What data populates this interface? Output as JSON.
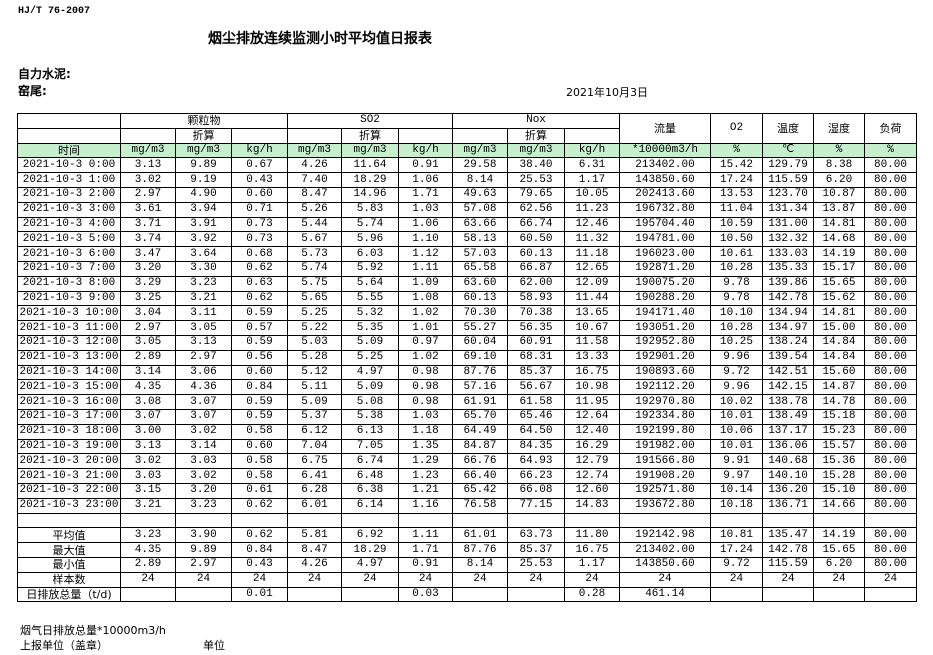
{
  "header": {
    "standard": "HJ/T  76-2007",
    "title": "烟尘排放连续监测小时平均值日报表",
    "company": "自力水泥:",
    "kiln": "窑尾:",
    "date": "2021年10月3日"
  },
  "table": {
    "groups": {
      "particulate": "颗粒物",
      "so2": "SO2",
      "nox": "Nox",
      "flow": "流量",
      "o2": "O2",
      "temp": "温度",
      "humidity": "湿度",
      "load": "负荷",
      "converted": "折算"
    },
    "units": [
      "时间",
      "mg/m3",
      "mg/m3",
      "kg/h",
      "mg/m3",
      "mg/m3",
      "kg/h",
      "mg/m3",
      "mg/m3",
      "kg/h",
      "*10000m3/h",
      "%",
      "℃",
      "%",
      "%"
    ],
    "units_bg": "#c6efce",
    "rows": [
      [
        "2021-10-3 0:00",
        "3.13",
        "9.89",
        "0.67",
        "4.26",
        "11.64",
        "0.91",
        "29.58",
        "38.40",
        "6.31",
        "213402.00",
        "15.42",
        "129.79",
        "8.38",
        "80.00"
      ],
      [
        "2021-10-3 1:00",
        "3.02",
        "9.19",
        "0.43",
        "7.40",
        "18.29",
        "1.06",
        "8.14",
        "25.53",
        "1.17",
        "143850.60",
        "17.24",
        "115.59",
        "6.20",
        "80.00"
      ],
      [
        "2021-10-3 2:00",
        "2.97",
        "4.90",
        "0.60",
        "8.47",
        "14.96",
        "1.71",
        "49.63",
        "79.65",
        "10.05",
        "202413.60",
        "13.53",
        "123.70",
        "10.87",
        "80.00"
      ],
      [
        "2021-10-3 3:00",
        "3.61",
        "3.94",
        "0.71",
        "5.26",
        "5.83",
        "1.03",
        "57.08",
        "62.56",
        "11.23",
        "196732.80",
        "11.04",
        "131.34",
        "13.87",
        "80.00"
      ],
      [
        "2021-10-3 4:00",
        "3.71",
        "3.91",
        "0.73",
        "5.44",
        "5.74",
        "1.06",
        "63.66",
        "66.74",
        "12.46",
        "195704.40",
        "10.59",
        "131.00",
        "14.81",
        "80.00"
      ],
      [
        "2021-10-3 5:00",
        "3.74",
        "3.92",
        "0.73",
        "5.67",
        "5.96",
        "1.10",
        "58.13",
        "60.50",
        "11.32",
        "194781.00",
        "10.50",
        "132.32",
        "14.68",
        "80.00"
      ],
      [
        "2021-10-3 6:00",
        "3.47",
        "3.64",
        "0.68",
        "5.73",
        "6.03",
        "1.12",
        "57.03",
        "60.13",
        "11.18",
        "196023.00",
        "10.61",
        "133.03",
        "14.19",
        "80.00"
      ],
      [
        "2021-10-3 7:00",
        "3.20",
        "3.30",
        "0.62",
        "5.74",
        "5.92",
        "1.11",
        "65.58",
        "66.87",
        "12.65",
        "192871.20",
        "10.28",
        "135.33",
        "15.17",
        "80.00"
      ],
      [
        "2021-10-3 8:00",
        "3.29",
        "3.23",
        "0.63",
        "5.75",
        "5.64",
        "1.09",
        "63.60",
        "62.00",
        "12.09",
        "190075.20",
        "9.78",
        "139.86",
        "15.65",
        "80.00"
      ],
      [
        "2021-10-3 9:00",
        "3.25",
        "3.21",
        "0.62",
        "5.65",
        "5.55",
        "1.08",
        "60.13",
        "58.93",
        "11.44",
        "190288.20",
        "9.78",
        "142.78",
        "15.62",
        "80.00"
      ],
      [
        "2021-10-3 10:00",
        "3.04",
        "3.11",
        "0.59",
        "5.25",
        "5.32",
        "1.02",
        "70.30",
        "70.38",
        "13.65",
        "194171.40",
        "10.10",
        "134.94",
        "14.81",
        "80.00"
      ],
      [
        "2021-10-3 11:00",
        "2.97",
        "3.05",
        "0.57",
        "5.22",
        "5.35",
        "1.01",
        "55.27",
        "56.35",
        "10.67",
        "193051.20",
        "10.28",
        "134.97",
        "15.00",
        "80.00"
      ],
      [
        "2021-10-3 12:00",
        "3.05",
        "3.13",
        "0.59",
        "5.03",
        "5.09",
        "0.97",
        "60.04",
        "60.91",
        "11.58",
        "192952.80",
        "10.25",
        "138.24",
        "14.84",
        "80.00"
      ],
      [
        "2021-10-3 13:00",
        "2.89",
        "2.97",
        "0.56",
        "5.28",
        "5.25",
        "1.02",
        "69.10",
        "68.31",
        "13.33",
        "192901.20",
        "9.96",
        "139.54",
        "14.84",
        "80.00"
      ],
      [
        "2021-10-3 14:00",
        "3.14",
        "3.06",
        "0.60",
        "5.12",
        "4.97",
        "0.98",
        "87.76",
        "85.37",
        "16.75",
        "190893.60",
        "9.72",
        "142.51",
        "15.60",
        "80.00"
      ],
      [
        "2021-10-3 15:00",
        "4.35",
        "4.36",
        "0.84",
        "5.11",
        "5.09",
        "0.98",
        "57.16",
        "56.67",
        "10.98",
        "192112.20",
        "9.96",
        "142.15",
        "14.87",
        "80.00"
      ],
      [
        "2021-10-3 16:00",
        "3.08",
        "3.07",
        "0.59",
        "5.09",
        "5.08",
        "0.98",
        "61.91",
        "61.58",
        "11.95",
        "192970.80",
        "10.02",
        "138.78",
        "14.78",
        "80.00"
      ],
      [
        "2021-10-3 17:00",
        "3.07",
        "3.07",
        "0.59",
        "5.37",
        "5.38",
        "1.03",
        "65.70",
        "65.46",
        "12.64",
        "192334.80",
        "10.01",
        "138.49",
        "15.18",
        "80.00"
      ],
      [
        "2021-10-3 18:00",
        "3.00",
        "3.02",
        "0.58",
        "6.12",
        "6.13",
        "1.18",
        "64.49",
        "64.50",
        "12.40",
        "192199.80",
        "10.06",
        "137.17",
        "15.23",
        "80.00"
      ],
      [
        "2021-10-3 19:00",
        "3.13",
        "3.14",
        "0.60",
        "7.04",
        "7.05",
        "1.35",
        "84.87",
        "84.35",
        "16.29",
        "191982.00",
        "10.01",
        "136.06",
        "15.57",
        "80.00"
      ],
      [
        "2021-10-3 20:00",
        "3.02",
        "3.03",
        "0.58",
        "6.75",
        "6.74",
        "1.29",
        "66.76",
        "64.93",
        "12.79",
        "191566.80",
        "9.91",
        "140.68",
        "15.36",
        "80.00"
      ],
      [
        "2021-10-3 21:00",
        "3.03",
        "3.02",
        "0.58",
        "6.41",
        "6.48",
        "1.23",
        "66.40",
        "66.23",
        "12.74",
        "191908.20",
        "9.97",
        "140.10",
        "15.28",
        "80.00"
      ],
      [
        "2021-10-3 22:00",
        "3.15",
        "3.20",
        "0.61",
        "6.28",
        "6.38",
        "1.21",
        "65.42",
        "66.08",
        "12.60",
        "192571.80",
        "10.14",
        "136.20",
        "15.10",
        "80.00"
      ],
      [
        "2021-10-3 23:00",
        "3.21",
        "3.23",
        "0.62",
        "6.01",
        "6.14",
        "1.16",
        "76.58",
        "77.15",
        "14.83",
        "193672.80",
        "10.18",
        "136.71",
        "14.66",
        "80.00"
      ]
    ],
    "summary": [
      [
        "平均值",
        "3.23",
        "3.90",
        "0.62",
        "5.81",
        "6.92",
        "1.11",
        "61.01",
        "63.73",
        "11.80",
        "192142.98",
        "10.81",
        "135.47",
        "14.19",
        "80.00"
      ],
      [
        "最大值",
        "4.35",
        "9.89",
        "0.84",
        "8.47",
        "18.29",
        "1.71",
        "87.76",
        "85.37",
        "16.75",
        "213402.00",
        "17.24",
        "142.78",
        "15.65",
        "80.00"
      ],
      [
        "最小值",
        "2.89",
        "2.97",
        "0.43",
        "4.26",
        "4.97",
        "0.91",
        "8.14",
        "25.53",
        "1.17",
        "143850.60",
        "9.72",
        "115.59",
        "6.20",
        "80.00"
      ],
      [
        "样本数",
        "24",
        "24",
        "24",
        "24",
        "24",
        "24",
        "24",
        "24",
        "24",
        "24",
        "24",
        "24",
        "24",
        "24"
      ],
      [
        "日排放总量（t/d)",
        "",
        "",
        "0.01",
        "",
        "",
        "0.03",
        "",
        "",
        "0.28",
        "461.14",
        "",
        "",
        "",
        ""
      ]
    ]
  },
  "footer": {
    "flue_total": "烟气日排放总量*10000m3/h",
    "reporting_unit": "上报单位（盖章）",
    "unit": "单位"
  }
}
